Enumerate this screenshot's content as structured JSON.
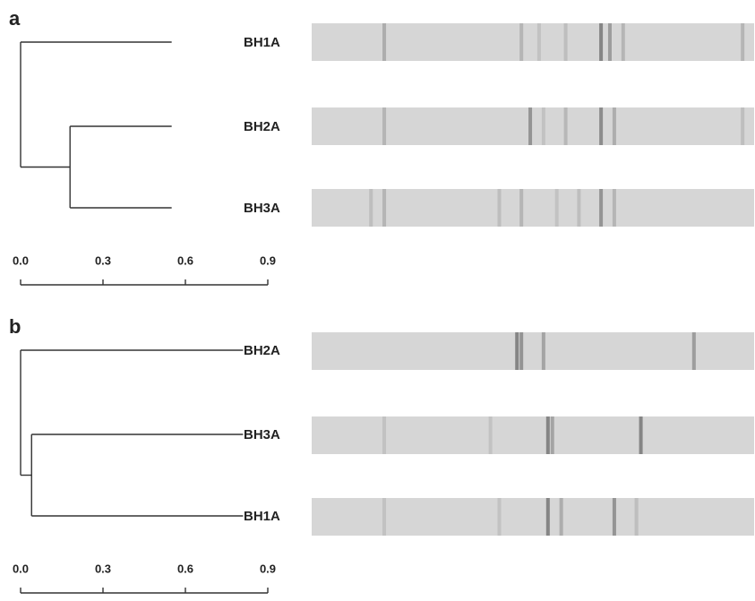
{
  "panels": [
    {
      "label": "a",
      "leaves": [
        "BH1A",
        "BH2A",
        "BH3A"
      ],
      "root_height": 0,
      "inner_height": 0.18,
      "leaf_height": 0.55,
      "xlim": [
        0,
        0.9
      ],
      "xticks": [
        {
          "value": 0,
          "label": "0.0"
        },
        0.3,
        0.6,
        0.9
      ]
    },
    {
      "label": "b",
      "leaves": [
        "BH2A",
        "BH3A",
        "BH1A"
      ],
      "root_height": 0,
      "inner_height": 0.04,
      "leaf_height": 0.81,
      "xlim": [
        0,
        0.9
      ],
      "xticks": [
        {
          "value": 0,
          "label": "0.0"
        },
        0.3,
        0.6,
        0.9
      ]
    }
  ]
}
